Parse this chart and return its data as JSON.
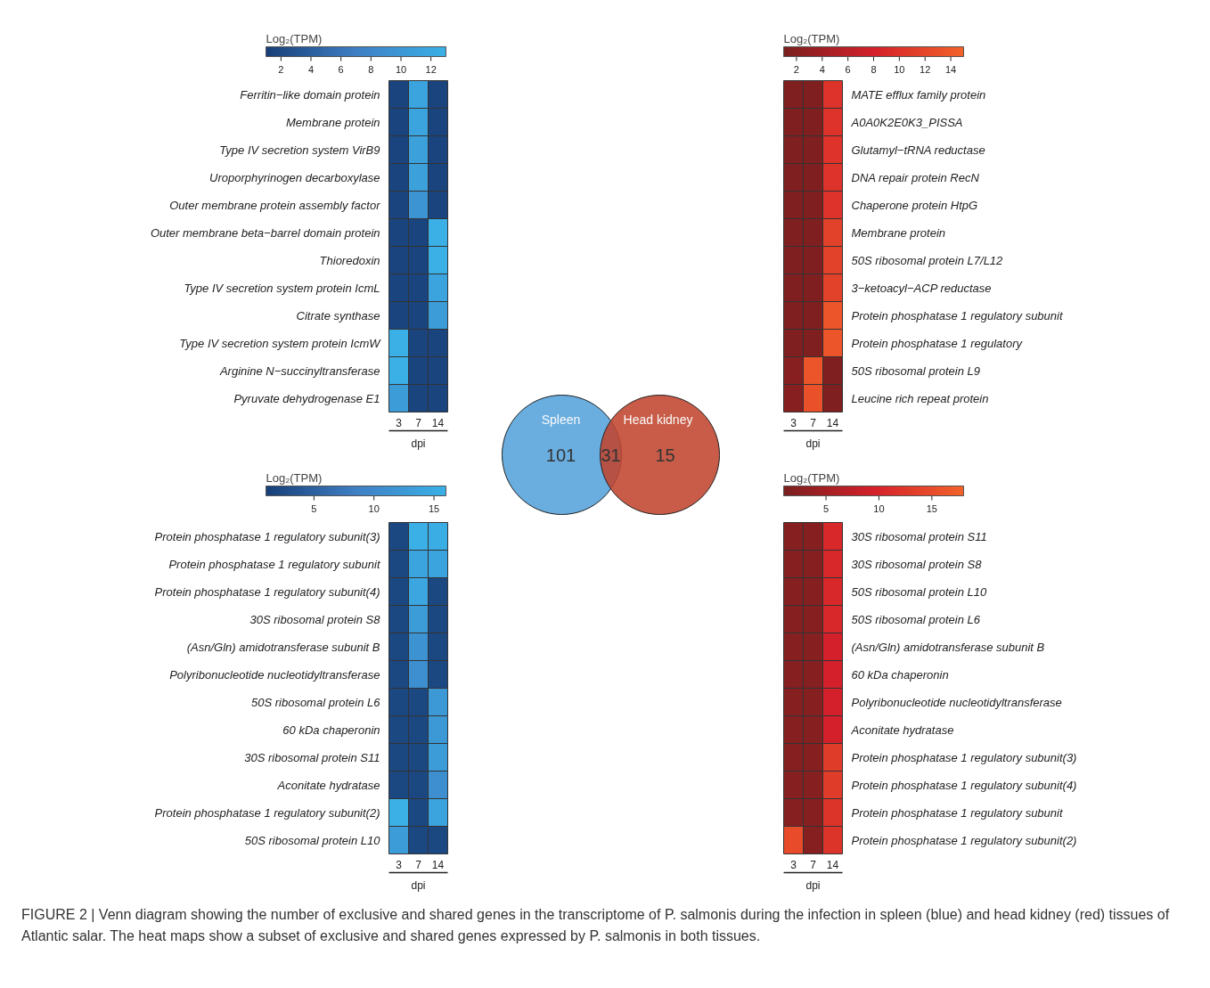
{
  "chart_data": [
    {
      "type": "heatmap",
      "clabel": "Log₂(TPM)",
      "xlabel": "dpi",
      "categories": [
        "3",
        "7",
        "14"
      ],
      "clim": [
        1,
        13
      ],
      "cticks": [
        2,
        4,
        6,
        8,
        10,
        12
      ],
      "colors": [
        "#173f78",
        "#3f7fc4",
        "#3ab0e6"
      ],
      "y_categories": [
        "Ferritin−like domain protein",
        "Membrane protein",
        "Type IV secretion system VirB9",
        "Uroporphyrinogen decarboxylase",
        "Outer membrane protein assembly factor",
        "Outer membrane beta−barrel domain protein",
        "Thioredoxin",
        "Type IV secretion system protein IcmL",
        "Citrate synthase",
        "Type IV secretion system protein IcmW",
        "Arginine N−succinyltransferase",
        "Pyruvate dehydrogenase E1"
      ],
      "cells": [
        [
          1.5,
          11.5,
          1.5
        ],
        [
          1.5,
          11.5,
          1.5
        ],
        [
          1.5,
          11,
          1.5
        ],
        [
          1.5,
          11,
          1.5
        ],
        [
          1.5,
          9.5,
          1.5
        ],
        [
          1.5,
          1.5,
          13
        ],
        [
          1.5,
          1.5,
          13
        ],
        [
          1.5,
          1.5,
          11.5
        ],
        [
          1.5,
          1.5,
          10.5
        ],
        [
          13,
          1.5,
          1.5
        ],
        [
          13,
          1.5,
          1.5
        ],
        [
          10.5,
          1.5,
          1.5
        ]
      ]
    },
    {
      "type": "heatmap",
      "clabel": "Log₂(TPM)",
      "xlabel": "dpi",
      "categories": [
        "3",
        "7",
        "14"
      ],
      "clim": [
        1,
        16
      ],
      "cticks": [
        5,
        10,
        15
      ],
      "colors": [
        "#173f78",
        "#3f7fc4",
        "#3ab0e6"
      ],
      "y_categories": [
        "Protein phosphatase 1 regulatory subunit(3)",
        "Protein phosphatase 1 regulatory subunit",
        "Protein phosphatase 1 regulatory subunit(4)",
        "30S ribosomal protein S8",
        "(Asn/Gln) amidotransferase subunit B",
        "Polyribonucleotide nucleotidyltransferase",
        "50S ribosomal protein L6",
        "60 kDa chaperonin",
        "30S ribosomal protein S11",
        "Aconitate hydratase",
        "Protein phosphatase 1 regulatory subunit(2)",
        "50S ribosomal protein L10"
      ],
      "cells": [
        [
          2,
          16,
          15.5
        ],
        [
          2,
          14,
          14
        ],
        [
          2,
          14.5,
          2
        ],
        [
          2,
          13,
          2
        ],
        [
          2,
          11.5,
          2
        ],
        [
          2,
          11,
          2
        ],
        [
          2,
          2,
          12.5
        ],
        [
          2,
          2,
          12.5
        ],
        [
          2,
          2,
          13
        ],
        [
          2,
          2,
          11
        ],
        [
          16,
          2,
          14
        ],
        [
          13,
          2,
          2
        ]
      ]
    },
    {
      "type": "other",
      "categories": [
        "Spleen",
        null,
        "Head kidney"
      ],
      "values": [
        101,
        31,
        15
      ],
      "data_labels": true
    },
    {
      "type": "heatmap",
      "clabel": "Log₂(TPM)",
      "xlabel": "dpi",
      "categories": [
        "3",
        "7",
        "14"
      ],
      "clim": [
        1,
        15
      ],
      "cticks": [
        2,
        4,
        6,
        8,
        10,
        12,
        14
      ],
      "colors": [
        "#7a1f1f",
        "#d4202a",
        "#f2632a"
      ],
      "y_categories": [
        "MATE efflux family protein",
        "A0A0K2E0K3_PISSA",
        "Glutamyl−tRNA reductase",
        "DNA repair protein RecN",
        "Chaperone protein HtpG",
        "Membrane protein",
        "50S ribosomal protein L7/L12",
        "3−ketoacyl−ACP reductase",
        "Protein phosphatase 1 regulatory subunit",
        "Protein phosphatase 1 regulatory",
        "50S ribosomal protein L9",
        "Leucine rich repeat protein"
      ],
      "cells": [
        [
          1.5,
          1.5,
          10
        ],
        [
          1.5,
          1.5,
          10
        ],
        [
          1.5,
          1.5,
          10
        ],
        [
          1.5,
          1.5,
          10
        ],
        [
          1.5,
          1.5,
          10
        ],
        [
          1.5,
          1.5,
          11.5
        ],
        [
          1.5,
          1.5,
          11.5
        ],
        [
          1.5,
          1.5,
          11.5
        ],
        [
          1.5,
          1.5,
          13.5
        ],
        [
          1.5,
          1.5,
          13.5
        ],
        [
          2,
          13.5,
          1.5
        ],
        [
          2,
          13,
          1.5
        ]
      ]
    },
    {
      "type": "heatmap",
      "clabel": "Log₂(TPM)",
      "xlabel": "dpi",
      "categories": [
        "3",
        "7",
        "14"
      ],
      "clim": [
        1,
        18
      ],
      "cticks": [
        5,
        10,
        15
      ],
      "colors": [
        "#7a1f1f",
        "#d4202a",
        "#f2632a"
      ],
      "y_categories": [
        "30S ribosomal protein S11",
        "30S ribosomal protein S8",
        "50S ribosomal protein L10",
        "50S ribosomal protein L6",
        "(Asn/Gln) amidotransferase subunit B",
        "60 kDa chaperonin",
        "Polyribonucleotide nucleotidyltransferase",
        "Aconitate hydratase",
        "Protein phosphatase 1 regulatory subunit(3)",
        "Protein phosphatase 1 regulatory subunit(4)",
        "Protein phosphatase 1 regulatory subunit",
        "Protein phosphatase 1 regulatory subunit(2)"
      ],
      "cells": [
        [
          2,
          2,
          10.5
        ],
        [
          2,
          2,
          10.5
        ],
        [
          2,
          2,
          10.5
        ],
        [
          2,
          2,
          10.5
        ],
        [
          2,
          2,
          9.5
        ],
        [
          2,
          2,
          9.5
        ],
        [
          2,
          2,
          9.5
        ],
        [
          2,
          2,
          9.5
        ],
        [
          2,
          2,
          13
        ],
        [
          2,
          2,
          13
        ],
        [
          2,
          2,
          12
        ],
        [
          15,
          2,
          12
        ]
      ]
    },
    {
      "type": "other",
      "annotations": [
        "FIGURE 2 | Venn diagram showing the number of exclusive and shared genes in the transcriptome of P. salmonis during the infection in spleen (blue) and head kidney (red) tissues of Atlantic salar. The heat maps show a subset of exclusive and shared genes expressed by P. salmonis in both tissues."
      ]
    }
  ]
}
